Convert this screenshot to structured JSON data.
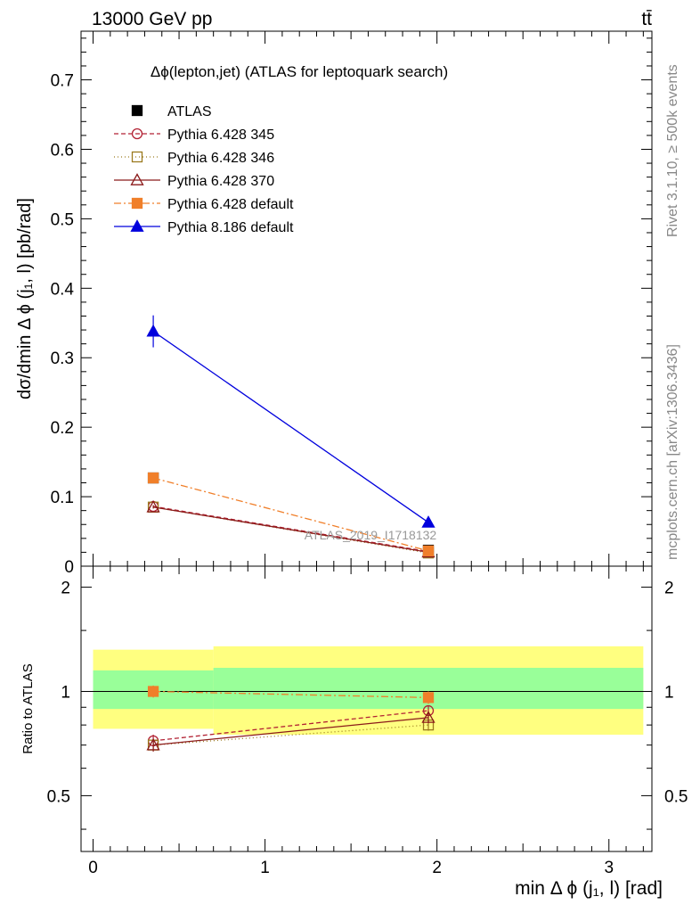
{
  "header": {
    "energy_label": "13000 GeV pp",
    "process_label": "tt̄"
  },
  "side_labels": {
    "rivet": "Rivet 3.1.10, ≥ 500k events",
    "mcplots": "mcplots.cern.ch [arXiv:1306.3436]"
  },
  "chart_data": [
    {
      "type": "line",
      "panel": "main",
      "title": "Δϕ(lepton,jet) (ATLAS for leptoquark search)",
      "watermark": "ATLAS_2019_I1718132",
      "ylabel": "dσ/dmin Δ ϕ (j₁, l) [pb/rad]",
      "ylim": [
        0,
        0.77
      ],
      "yticks": [
        0,
        0.1,
        0.2,
        0.3,
        0.4,
        0.5,
        0.6,
        0.7
      ],
      "ytick_labels": [
        "0",
        "0.1",
        "0.2",
        "0.3",
        "0.4",
        "0.5",
        "0.6",
        "0.7"
      ],
      "xlim": [
        -0.07,
        3.25
      ],
      "legend_position": "top-left",
      "series": [
        {
          "name": "ATLAS",
          "x": [
            0.35,
            1.95
          ],
          "values": [
            0.127,
            0.023
          ],
          "errors": [
            0.003,
            0.001
          ],
          "color": "#000000",
          "marker": "filled-square",
          "line": "none"
        },
        {
          "name": "Pythia 6.428 345",
          "x": [
            0.35,
            1.95
          ],
          "values": [
            0.086,
            0.021
          ],
          "errors": [
            0.002,
            0.001
          ],
          "color": "#b22234",
          "marker": "open-circle",
          "line": "dashed"
        },
        {
          "name": "Pythia 6.428 346",
          "x": [
            0.35,
            1.95
          ],
          "values": [
            0.085,
            0.019
          ],
          "errors": [
            0.002,
            0.001
          ],
          "color": "#9b7a1f",
          "marker": "open-square",
          "line": "dotted"
        },
        {
          "name": "Pythia 6.428 370",
          "x": [
            0.35,
            1.95
          ],
          "values": [
            0.085,
            0.02
          ],
          "errors": [
            0.002,
            0.001
          ],
          "color": "#8b1a1a",
          "marker": "open-triangle",
          "line": "solid"
        },
        {
          "name": "Pythia 6.428 default",
          "x": [
            0.35,
            1.95
          ],
          "values": [
            0.127,
            0.022
          ],
          "errors": [
            0.002,
            0.001
          ],
          "color": "#f07f2a",
          "marker": "filled-square",
          "line": "dashdot"
        },
        {
          "name": "Pythia 8.186 default",
          "x": [
            0.35,
            1.95
          ],
          "values": [
            0.338,
            0.063
          ],
          "errors": [
            0.023,
            0.003
          ],
          "color": "#0000dd",
          "marker": "filled-triangle",
          "line": "solid"
        }
      ]
    },
    {
      "type": "line",
      "panel": "ratio",
      "ylabel": "Ratio to ATLAS",
      "xlabel": "min Δ ϕ (j₁, l) [rad]",
      "ylim": [
        0.345,
        2.3
      ],
      "yticks": [
        0.5,
        1,
        2
      ],
      "ytick_labels": [
        "0.5",
        "1",
        "2"
      ],
      "xlim": [
        -0.07,
        3.25
      ],
      "xticks": [
        0,
        1,
        2,
        3
      ],
      "xtick_labels": [
        "0",
        "1",
        "2",
        "3"
      ],
      "reference_line": 1,
      "bands": [
        {
          "name": "ATLAS total uncertainty",
          "color": "#ffff80",
          "bins": [
            [
              0,
              0.7,
              0.78,
              1.32
            ],
            [
              0.7,
              3.2,
              0.75,
              1.35
            ]
          ]
        },
        {
          "name": "ATLAS stat uncertainty",
          "color": "#99ff99",
          "bins": [
            [
              0,
              0.7,
              0.89,
              1.15
            ],
            [
              0.7,
              3.2,
              0.89,
              1.17
            ]
          ]
        }
      ],
      "series": [
        {
          "name": "Pythia 6.428 345",
          "x": [
            0.35,
            1.95
          ],
          "values": [
            0.72,
            0.88
          ],
          "errors": [
            0.03,
            0.03
          ],
          "color": "#b22234",
          "marker": "open-circle",
          "line": "dashed"
        },
        {
          "name": "Pythia 6.428 346",
          "x": [
            0.35,
            1.95
          ],
          "values": [
            0.7,
            0.8
          ],
          "errors": [
            0.02,
            0.03
          ],
          "color": "#9b7a1f",
          "marker": "open-square",
          "line": "dotted"
        },
        {
          "name": "Pythia 6.428 370",
          "x": [
            0.35,
            1.95
          ],
          "values": [
            0.7,
            0.84
          ],
          "errors": [
            0.03,
            0.03
          ],
          "color": "#8b1a1a",
          "marker": "open-triangle",
          "line": "solid"
        },
        {
          "name": "Pythia 6.428 default",
          "x": [
            0.35,
            1.95
          ],
          "values": [
            1.0,
            0.96
          ],
          "errors": [
            0.04,
            0.04
          ],
          "color": "#f07f2a",
          "marker": "filled-square",
          "line": "dashdot"
        }
      ]
    }
  ]
}
